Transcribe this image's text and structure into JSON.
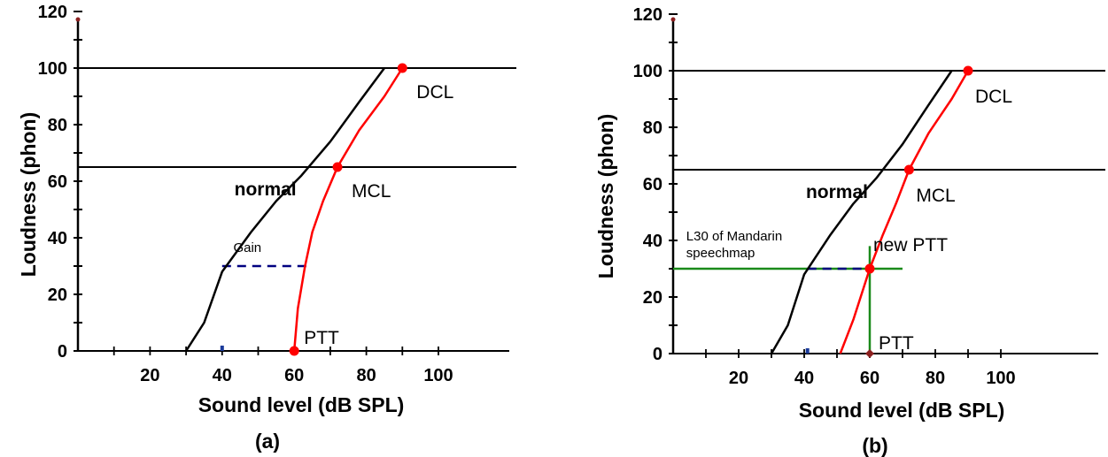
{
  "chart_data": [
    {
      "type": "line",
      "panel_label": "(a)",
      "xlabel": "Sound level (dB SPL)",
      "ylabel": "Loudness (phon)",
      "xlim": [
        0,
        110
      ],
      "ylim": [
        0,
        120
      ],
      "xticks": [
        20,
        40,
        60,
        80,
        100
      ],
      "yticks": [
        0,
        20,
        40,
        60,
        80,
        100,
        120
      ],
      "hlines": [
        100,
        65
      ],
      "curves": [
        {
          "name": "normal",
          "color": "#000000",
          "points": [
            [
              30,
              0
            ],
            [
              35,
              10
            ],
            [
              40,
              28
            ],
            [
              48,
              42
            ],
            [
              55,
              53
            ],
            [
              62,
              62
            ],
            [
              70,
              74
            ],
            [
              78,
              88
            ],
            [
              85,
              100
            ]
          ]
        },
        {
          "name": "",
          "color": "#ff0000",
          "points": [
            [
              60,
              0
            ],
            [
              61,
              15
            ],
            [
              63,
              30
            ],
            [
              65,
              42
            ],
            [
              68,
              53
            ],
            [
              72,
              65
            ],
            [
              78,
              78
            ],
            [
              85,
              90
            ],
            [
              90,
              100
            ]
          ]
        }
      ],
      "dashed_segments": [
        {
          "color": "#000080",
          "points": [
            [
              40,
              30
            ],
            [
              65,
              30
            ]
          ]
        }
      ],
      "red_points": [
        {
          "x": 60,
          "y": 0,
          "label": "PTT"
        },
        {
          "x": 72,
          "y": 65,
          "label": "MCL"
        },
        {
          "x": 90,
          "y": 100,
          "label": "DCL"
        }
      ],
      "annotations": [
        {
          "text": "normal",
          "bold": true,
          "x": 52,
          "y": 55
        },
        {
          "text": "Gain",
          "bold": false,
          "x": 47,
          "y": 35
        }
      ]
    },
    {
      "type": "line",
      "panel_label": "(b)",
      "xlabel": "Sound level (dB SPL)",
      "ylabel": "Loudness (phon)",
      "xlim": [
        0,
        110
      ],
      "ylim": [
        0,
        120
      ],
      "xticks": [
        20,
        40,
        60,
        80,
        100
      ],
      "yticks": [
        0,
        20,
        40,
        60,
        80,
        100,
        120
      ],
      "hlines": [
        100,
        65
      ],
      "curves": [
        {
          "name": "normal",
          "color": "#000000",
          "points": [
            [
              30,
              0
            ],
            [
              35,
              10
            ],
            [
              40,
              28
            ],
            [
              48,
              42
            ],
            [
              55,
              53
            ],
            [
              62,
              62
            ],
            [
              70,
              74
            ],
            [
              78,
              88
            ],
            [
              85,
              100
            ]
          ]
        },
        {
          "name": "",
          "color": "#ff0000",
          "points": [
            [
              51,
              0
            ],
            [
              55,
              12
            ],
            [
              60,
              30
            ],
            [
              64,
              42
            ],
            [
              68,
              53
            ],
            [
              72,
              65
            ],
            [
              78,
              78
            ],
            [
              85,
              90
            ],
            [
              90,
              100
            ]
          ]
        }
      ],
      "dashed_segments": [
        {
          "color": "#000080",
          "points": [
            [
              41,
              30
            ],
            [
              60,
              30
            ]
          ]
        }
      ],
      "green_lines": [
        {
          "points": [
            [
              0,
              30
            ],
            [
              70,
              30
            ]
          ]
        },
        {
          "points": [
            [
              60,
              0
            ],
            [
              60,
              38
            ]
          ]
        }
      ],
      "red_points": [
        {
          "x": 60,
          "y": 30,
          "label": "new PTT"
        },
        {
          "x": 72,
          "y": 65,
          "label": "MCL"
        },
        {
          "x": 90,
          "y": 100,
          "label": "DCL"
        }
      ],
      "extra_markers": [
        {
          "x": 60,
          "y": 0,
          "label": "PTT"
        }
      ],
      "annotations": [
        {
          "text": "normal",
          "bold": true,
          "x": 50,
          "y": 55
        },
        {
          "text": "L30 of Mandarin",
          "bold": false,
          "x": 4,
          "y": 40,
          "small": true
        },
        {
          "text": "speechmap",
          "bold": false,
          "x": 4,
          "y": 34,
          "small": true
        }
      ]
    }
  ]
}
